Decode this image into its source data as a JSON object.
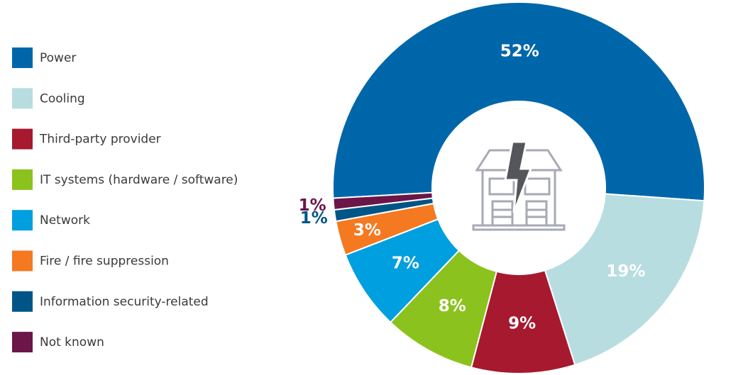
{
  "chart_data": {
    "type": "pie",
    "categories": [
      "Power",
      "Cooling",
      "Third-party provider",
      "IT systems (hardware / software)",
      "Network",
      "Fire / fire suppression",
      "Information security-related",
      "Not known"
    ],
    "values": [
      52,
      19,
      9,
      8,
      7,
      3,
      1,
      1
    ],
    "value_labels": [
      "52%",
      "19%",
      "9%",
      "8%",
      "7%",
      "3%",
      "1%",
      "1%"
    ],
    "colors": [
      "#0066aa",
      "#b8dde1",
      "#a6192e",
      "#8cc21e",
      "#009fdf",
      "#f47920",
      "#005587",
      "#6b1548"
    ],
    "donut": true
  }
}
